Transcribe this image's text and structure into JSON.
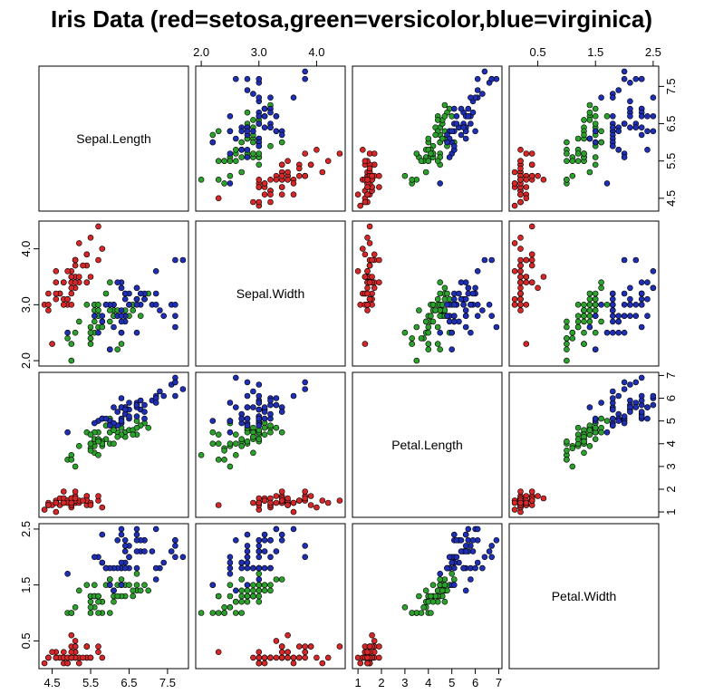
{
  "title": "Iris Data (red=setosa,green=versicolor,blue=virginica)",
  "chart_data": {
    "type": "scatter",
    "kind": "scatterplot-matrix",
    "variables": [
      "Sepal.Length",
      "Sepal.Width",
      "Petal.Length",
      "Petal.Width"
    ],
    "ranges": [
      [
        4.3,
        7.9
      ],
      [
        2.0,
        4.4
      ],
      [
        1.0,
        6.9
      ],
      [
        0.1,
        2.5
      ]
    ],
    "axis_ticks": [
      {
        "values": [
          4.5,
          5.5,
          6.5,
          7.5
        ],
        "labels": [
          "4.5",
          "5.5",
          "6.5",
          "7.5"
        ]
      },
      {
        "values": [
          2.0,
          3.0,
          4.0
        ],
        "labels": [
          "2.0",
          "3.0",
          "4.0"
        ]
      },
      {
        "values": [
          1,
          2,
          3,
          4,
          5,
          6,
          7
        ],
        "labels": [
          "1",
          "2",
          "3",
          "4",
          "5",
          "6",
          "7"
        ]
      },
      {
        "values": [
          0.5,
          1.5,
          2.5
        ],
        "labels": [
          "0.5",
          "1.5",
          "2.5"
        ]
      }
    ],
    "legend": "none",
    "grid": false,
    "series": [
      {
        "name": "setosa",
        "color": "#d62728",
        "points": [
          [
            5.1,
            3.5,
            1.4,
            0.2
          ],
          [
            4.9,
            3.0,
            1.4,
            0.2
          ],
          [
            4.7,
            3.2,
            1.3,
            0.2
          ],
          [
            4.6,
            3.1,
            1.5,
            0.2
          ],
          [
            5.0,
            3.6,
            1.4,
            0.2
          ],
          [
            5.4,
            3.9,
            1.7,
            0.4
          ],
          [
            4.6,
            3.4,
            1.4,
            0.3
          ],
          [
            5.0,
            3.4,
            1.5,
            0.2
          ],
          [
            4.4,
            2.9,
            1.4,
            0.2
          ],
          [
            4.9,
            3.1,
            1.5,
            0.1
          ],
          [
            5.4,
            3.7,
            1.5,
            0.2
          ],
          [
            4.8,
            3.4,
            1.6,
            0.2
          ],
          [
            4.8,
            3.0,
            1.4,
            0.1
          ],
          [
            4.3,
            3.0,
            1.1,
            0.1
          ],
          [
            5.8,
            4.0,
            1.2,
            0.2
          ],
          [
            5.7,
            4.4,
            1.5,
            0.4
          ],
          [
            5.4,
            3.9,
            1.3,
            0.4
          ],
          [
            5.1,
            3.5,
            1.4,
            0.3
          ],
          [
            5.7,
            3.8,
            1.7,
            0.3
          ],
          [
            5.1,
            3.8,
            1.5,
            0.3
          ],
          [
            5.4,
            3.4,
            1.7,
            0.2
          ],
          [
            5.1,
            3.7,
            1.5,
            0.4
          ],
          [
            4.6,
            3.6,
            1.0,
            0.2
          ],
          [
            5.1,
            3.3,
            1.7,
            0.5
          ],
          [
            4.8,
            3.4,
            1.9,
            0.2
          ],
          [
            5.0,
            3.0,
            1.6,
            0.2
          ],
          [
            5.0,
            3.4,
            1.6,
            0.4
          ],
          [
            5.2,
            3.5,
            1.5,
            0.2
          ],
          [
            5.2,
            3.4,
            1.4,
            0.2
          ],
          [
            4.7,
            3.2,
            1.6,
            0.2
          ],
          [
            4.8,
            3.1,
            1.6,
            0.2
          ],
          [
            5.4,
            3.4,
            1.5,
            0.4
          ],
          [
            5.2,
            4.1,
            1.5,
            0.1
          ],
          [
            5.5,
            4.2,
            1.4,
            0.2
          ],
          [
            4.9,
            3.1,
            1.5,
            0.2
          ],
          [
            5.0,
            3.2,
            1.2,
            0.2
          ],
          [
            5.5,
            3.5,
            1.3,
            0.2
          ],
          [
            4.9,
            3.6,
            1.4,
            0.1
          ],
          [
            4.4,
            3.0,
            1.3,
            0.2
          ],
          [
            5.1,
            3.4,
            1.5,
            0.2
          ],
          [
            5.0,
            3.5,
            1.3,
            0.3
          ],
          [
            4.5,
            2.3,
            1.3,
            0.3
          ],
          [
            4.4,
            3.2,
            1.3,
            0.2
          ],
          [
            5.0,
            3.5,
            1.6,
            0.6
          ],
          [
            5.1,
            3.8,
            1.9,
            0.4
          ],
          [
            4.8,
            3.0,
            1.4,
            0.3
          ],
          [
            5.1,
            3.8,
            1.6,
            0.2
          ],
          [
            4.6,
            3.2,
            1.4,
            0.2
          ],
          [
            5.3,
            3.7,
            1.5,
            0.2
          ],
          [
            5.0,
            3.3,
            1.4,
            0.2
          ]
        ]
      },
      {
        "name": "versicolor",
        "color": "#2ca02c",
        "points": [
          [
            7.0,
            3.2,
            4.7,
            1.4
          ],
          [
            6.4,
            3.2,
            4.5,
            1.5
          ],
          [
            6.9,
            3.1,
            4.9,
            1.5
          ],
          [
            5.5,
            2.3,
            4.0,
            1.3
          ],
          [
            6.5,
            2.8,
            4.6,
            1.5
          ],
          [
            5.7,
            2.8,
            4.5,
            1.3
          ],
          [
            6.3,
            3.3,
            4.7,
            1.6
          ],
          [
            4.9,
            2.4,
            3.3,
            1.0
          ],
          [
            6.6,
            2.9,
            4.6,
            1.3
          ],
          [
            5.2,
            2.7,
            3.9,
            1.4
          ],
          [
            5.0,
            2.0,
            3.5,
            1.0
          ],
          [
            5.9,
            3.0,
            4.2,
            1.5
          ],
          [
            6.0,
            2.2,
            4.0,
            1.0
          ],
          [
            6.1,
            2.9,
            4.7,
            1.4
          ],
          [
            5.6,
            2.9,
            3.6,
            1.3
          ],
          [
            6.7,
            3.1,
            4.4,
            1.4
          ],
          [
            5.6,
            3.0,
            4.5,
            1.5
          ],
          [
            5.8,
            2.7,
            4.1,
            1.0
          ],
          [
            6.2,
            2.2,
            4.5,
            1.5
          ],
          [
            5.6,
            2.5,
            3.9,
            1.1
          ],
          [
            5.9,
            3.2,
            4.8,
            1.8
          ],
          [
            6.1,
            2.8,
            4.0,
            1.3
          ],
          [
            6.3,
            2.5,
            4.9,
            1.5
          ],
          [
            6.1,
            2.8,
            4.7,
            1.2
          ],
          [
            6.4,
            2.9,
            4.3,
            1.3
          ],
          [
            6.6,
            3.0,
            4.4,
            1.4
          ],
          [
            6.8,
            2.8,
            4.8,
            1.4
          ],
          [
            6.7,
            3.0,
            5.0,
            1.7
          ],
          [
            6.0,
            2.9,
            4.5,
            1.5
          ],
          [
            5.7,
            2.6,
            3.5,
            1.0
          ],
          [
            5.5,
            2.4,
            3.8,
            1.1
          ],
          [
            5.5,
            2.4,
            3.7,
            1.0
          ],
          [
            5.8,
            2.7,
            3.9,
            1.2
          ],
          [
            6.0,
            2.7,
            5.1,
            1.6
          ],
          [
            5.4,
            3.0,
            4.5,
            1.5
          ],
          [
            6.0,
            3.4,
            4.5,
            1.6
          ],
          [
            6.7,
            3.1,
            4.7,
            1.5
          ],
          [
            6.3,
            2.3,
            4.4,
            1.3
          ],
          [
            5.6,
            3.0,
            4.1,
            1.3
          ],
          [
            5.5,
            2.5,
            4.0,
            1.3
          ],
          [
            5.5,
            2.6,
            4.4,
            1.2
          ],
          [
            6.1,
            3.0,
            4.6,
            1.4
          ],
          [
            5.8,
            2.6,
            4.0,
            1.2
          ],
          [
            5.0,
            2.3,
            3.3,
            1.0
          ],
          [
            5.6,
            2.7,
            4.2,
            1.3
          ],
          [
            5.7,
            3.0,
            4.2,
            1.2
          ],
          [
            5.7,
            2.9,
            4.2,
            1.3
          ],
          [
            6.2,
            2.9,
            4.3,
            1.3
          ],
          [
            5.1,
            2.5,
            3.0,
            1.1
          ],
          [
            5.7,
            2.8,
            4.1,
            1.3
          ]
        ]
      },
      {
        "name": "virginica",
        "color": "#1f2fb4",
        "points": [
          [
            6.3,
            3.3,
            6.0,
            2.5
          ],
          [
            5.8,
            2.7,
            5.1,
            1.9
          ],
          [
            7.1,
            3.0,
            5.9,
            2.1
          ],
          [
            6.3,
            2.9,
            5.6,
            1.8
          ],
          [
            6.5,
            3.0,
            5.8,
            2.2
          ],
          [
            7.6,
            3.0,
            6.6,
            2.1
          ],
          [
            4.9,
            2.5,
            4.5,
            1.7
          ],
          [
            7.3,
            2.9,
            6.3,
            1.8
          ],
          [
            6.7,
            2.5,
            5.8,
            1.8
          ],
          [
            7.2,
            3.6,
            6.1,
            2.5
          ],
          [
            6.5,
            3.2,
            5.1,
            2.0
          ],
          [
            6.4,
            2.7,
            5.3,
            1.9
          ],
          [
            6.8,
            3.0,
            5.5,
            2.1
          ],
          [
            5.7,
            2.5,
            5.0,
            2.0
          ],
          [
            5.8,
            2.8,
            5.1,
            2.4
          ],
          [
            6.4,
            3.2,
            5.3,
            2.3
          ],
          [
            6.5,
            3.0,
            5.5,
            1.8
          ],
          [
            7.7,
            3.8,
            6.7,
            2.2
          ],
          [
            7.7,
            2.6,
            6.9,
            2.3
          ],
          [
            6.0,
            2.2,
            5.0,
            1.5
          ],
          [
            6.9,
            3.2,
            5.7,
            2.3
          ],
          [
            5.6,
            2.8,
            4.9,
            2.0
          ],
          [
            7.7,
            2.8,
            6.7,
            2.0
          ],
          [
            6.3,
            2.7,
            4.9,
            1.8
          ],
          [
            6.7,
            3.3,
            5.7,
            2.1
          ],
          [
            7.2,
            3.2,
            6.0,
            1.8
          ],
          [
            6.2,
            2.8,
            4.8,
            1.8
          ],
          [
            6.1,
            3.0,
            4.9,
            1.8
          ],
          [
            6.4,
            2.8,
            5.6,
            2.1
          ],
          [
            7.2,
            3.0,
            5.8,
            1.6
          ],
          [
            7.4,
            2.8,
            6.1,
            1.9
          ],
          [
            7.9,
            3.8,
            6.4,
            2.0
          ],
          [
            6.4,
            2.8,
            5.6,
            2.2
          ],
          [
            6.3,
            2.8,
            5.1,
            1.5
          ],
          [
            6.1,
            2.6,
            5.6,
            1.4
          ],
          [
            7.7,
            3.0,
            6.1,
            2.3
          ],
          [
            6.3,
            3.4,
            5.6,
            2.4
          ],
          [
            6.4,
            3.1,
            5.5,
            1.8
          ],
          [
            6.0,
            3.0,
            4.8,
            1.8
          ],
          [
            6.9,
            3.1,
            5.4,
            2.1
          ],
          [
            6.7,
            3.1,
            5.6,
            2.4
          ],
          [
            6.9,
            3.1,
            5.1,
            2.3
          ],
          [
            5.8,
            2.7,
            5.1,
            1.9
          ],
          [
            6.8,
            3.2,
            5.9,
            2.3
          ],
          [
            6.7,
            3.3,
            5.7,
            2.5
          ],
          [
            6.7,
            3.0,
            5.2,
            2.3
          ],
          [
            6.3,
            2.5,
            5.0,
            1.9
          ],
          [
            6.5,
            3.0,
            5.2,
            2.0
          ],
          [
            6.2,
            3.4,
            5.4,
            2.3
          ],
          [
            5.9,
            3.0,
            5.1,
            1.8
          ]
        ]
      }
    ]
  }
}
